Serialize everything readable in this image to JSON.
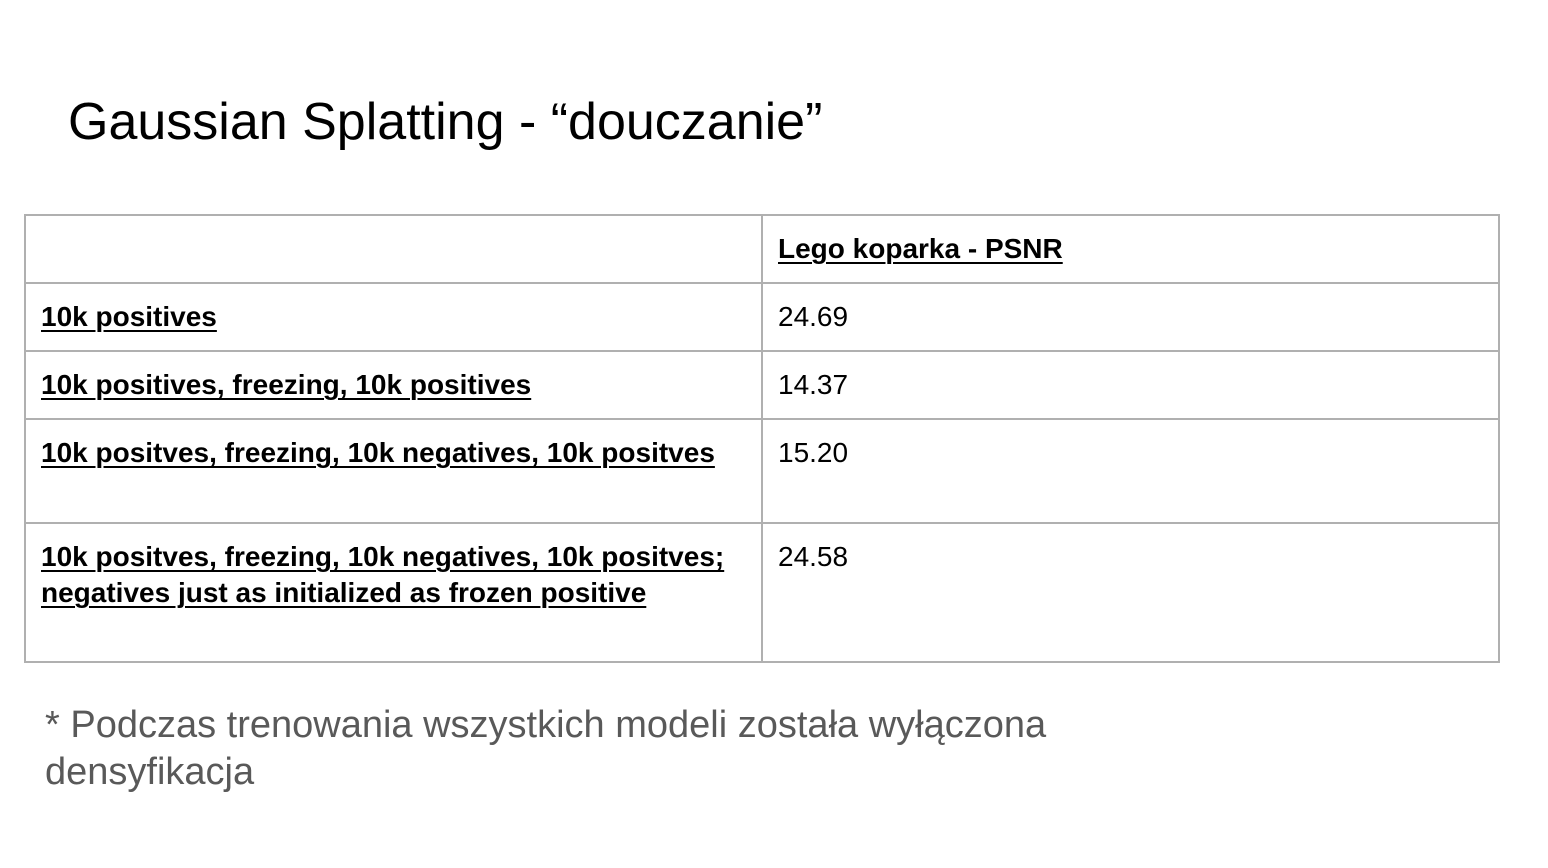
{
  "slide": {
    "title": "Gaussian Splatting - “douczanie”"
  },
  "table": {
    "corner": "",
    "column_header": "Lego koparka - PSNR",
    "rows": [
      {
        "label": "10k positives",
        "value": "24.69"
      },
      {
        "label": "10k positives, freezing, 10k positives",
        "value": "14.37"
      },
      {
        "label": "10k positves, freezing, 10k negatives, 10k positves",
        "value": "15.20"
      },
      {
        "label": "10k positves, freezing, 10k negatives, 10k positves; negatives just as initialized as frozen positive",
        "value": "24.58"
      }
    ]
  },
  "footnote": "* Podczas trenowania wszystkich modeli została wyłączona densyfikacja"
}
